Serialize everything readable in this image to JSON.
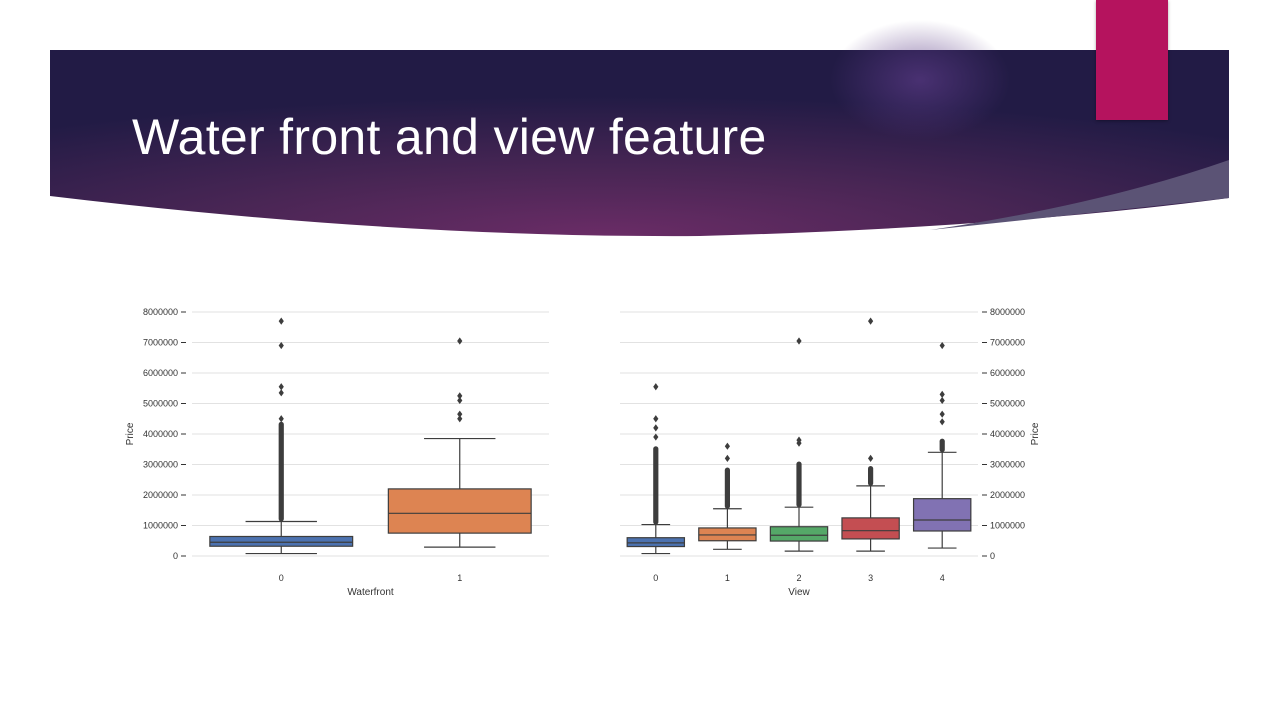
{
  "slide": {
    "title": "Water front and view feature",
    "colors": {
      "banner_dark": "#221b45",
      "banner_mid": "#6a2c66",
      "accent": "#b5135e",
      "swoosh": "#5b5375"
    }
  },
  "chart_data": [
    {
      "type": "box",
      "xlabel": "Waterfront",
      "ylabel": "Price",
      "ylim": [
        0,
        8000000
      ],
      "yticks": [
        0,
        1000000,
        2000000,
        3000000,
        4000000,
        5000000,
        6000000,
        7000000,
        8000000
      ],
      "ytick_side": "left",
      "grid": true,
      "categories": [
        "0",
        "1"
      ],
      "boxes": [
        {
          "category": "0",
          "color": "#4c72b0",
          "whisker_low": 80000,
          "q1": 320000,
          "median": 450000,
          "q3": 640000,
          "whisker_high": 1130000,
          "outlier_range": [
            1130000,
            4400000
          ],
          "outliers": [
            4500000,
            5350000,
            5550000,
            6900000,
            7700000
          ]
        },
        {
          "category": "1",
          "color": "#dd8452",
          "whisker_low": 290000,
          "q1": 750000,
          "median": 1400000,
          "q3": 2200000,
          "whisker_high": 3850000,
          "outlier_range": null,
          "outliers": [
            4500000,
            4650000,
            5100000,
            5250000,
            7050000
          ]
        }
      ]
    },
    {
      "type": "box",
      "xlabel": "View",
      "ylabel": "Price",
      "ylim": [
        0,
        8000000
      ],
      "yticks": [
        0,
        1000000,
        2000000,
        3000000,
        4000000,
        5000000,
        6000000,
        7000000,
        8000000
      ],
      "ytick_side": "right",
      "grid": true,
      "categories": [
        "0",
        "1",
        "2",
        "3",
        "4"
      ],
      "boxes": [
        {
          "category": "0",
          "color": "#4c72b0",
          "whisker_low": 80000,
          "q1": 310000,
          "median": 430000,
          "q3": 600000,
          "whisker_high": 1030000,
          "outlier_range": [
            1030000,
            3600000
          ],
          "outliers": [
            3900000,
            4200000,
            4500000,
            5550000
          ]
        },
        {
          "category": "1",
          "color": "#dd8452",
          "whisker_low": 220000,
          "q1": 500000,
          "median": 690000,
          "q3": 920000,
          "whisker_high": 1550000,
          "outlier_range": [
            1550000,
            2900000
          ],
          "outliers": [
            3200000,
            3600000
          ]
        },
        {
          "category": "2",
          "color": "#55a868",
          "whisker_low": 160000,
          "q1": 490000,
          "median": 680000,
          "q3": 960000,
          "whisker_high": 1600000,
          "outlier_range": [
            1600000,
            3100000
          ],
          "outliers": [
            3700000,
            3800000,
            7050000
          ]
        },
        {
          "category": "3",
          "color": "#c44e52",
          "whisker_low": 160000,
          "q1": 560000,
          "median": 830000,
          "q3": 1250000,
          "whisker_high": 2300000,
          "outlier_range": [
            2300000,
            2950000
          ],
          "outliers": [
            3200000,
            7700000
          ]
        },
        {
          "category": "4",
          "color": "#8172b3",
          "whisker_low": 260000,
          "q1": 820000,
          "median": 1180000,
          "q3": 1880000,
          "whisker_high": 3400000,
          "outlier_range": [
            3400000,
            3850000
          ],
          "outliers": [
            4400000,
            4650000,
            5100000,
            5300000,
            6900000
          ]
        }
      ]
    }
  ]
}
